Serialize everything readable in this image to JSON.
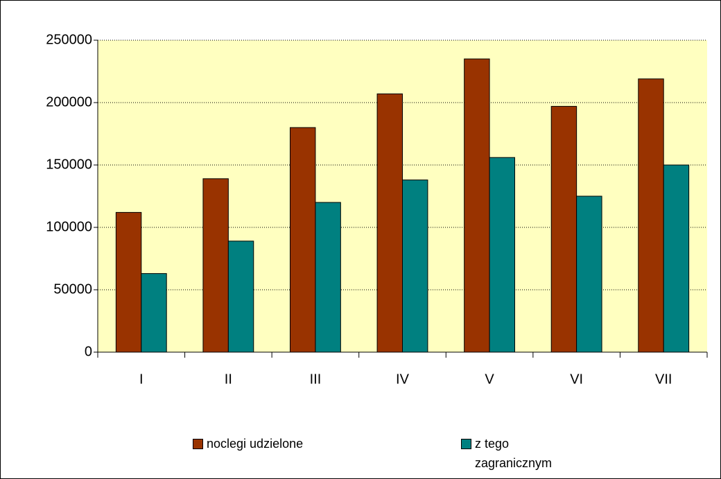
{
  "chart_data": {
    "type": "bar",
    "categories": [
      "I",
      "II",
      "III",
      "IV",
      "V",
      "VI",
      "VII"
    ],
    "series": [
      {
        "name": "noclegi udzielone",
        "color": "#993300",
        "values": [
          112000,
          139000,
          180000,
          207000,
          235000,
          197000,
          219000
        ]
      },
      {
        "name": "z tego zagranicznym",
        "color": "#008080",
        "values": [
          63000,
          89000,
          120000,
          138000,
          156000,
          125000,
          150000
        ]
      }
    ],
    "ylim": [
      0,
      250000
    ],
    "yticks": [
      0,
      50000,
      100000,
      150000,
      200000,
      250000
    ],
    "grid": true,
    "plot_background": "#ffffc0",
    "legend": "bottom"
  }
}
